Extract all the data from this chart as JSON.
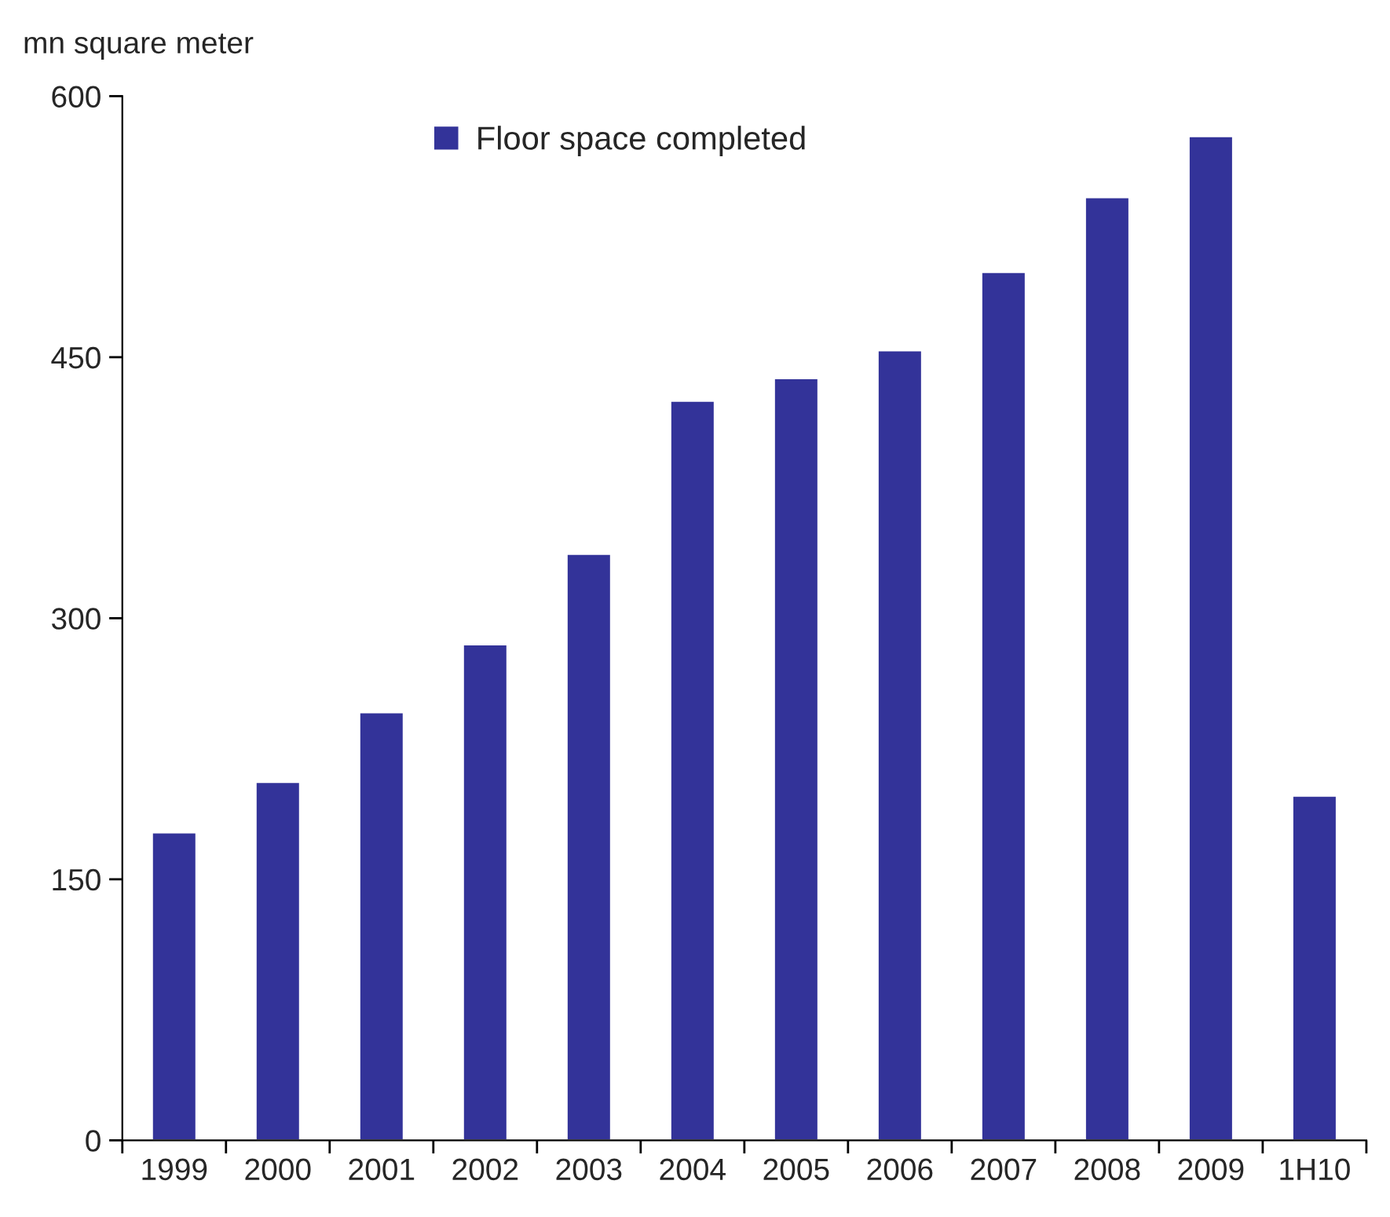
{
  "chart_data": {
    "type": "bar",
    "ylabel": "mn square meter",
    "categories": [
      "1999",
      "2000",
      "2001",
      "2002",
      "2003",
      "2004",
      "2005",
      "2006",
      "2007",
      "2008",
      "2009",
      "1H10"
    ],
    "series": [
      {
        "name": "Floor space completed",
        "color": "#333399",
        "values": [
          177,
          206,
          246,
          285,
          337,
          425,
          438,
          454,
          499,
          542,
          577,
          198
        ]
      }
    ],
    "ylim": [
      0,
      600
    ],
    "yticks": [
      0,
      150,
      300,
      450,
      600
    ],
    "grid": false,
    "legend": "top"
  }
}
